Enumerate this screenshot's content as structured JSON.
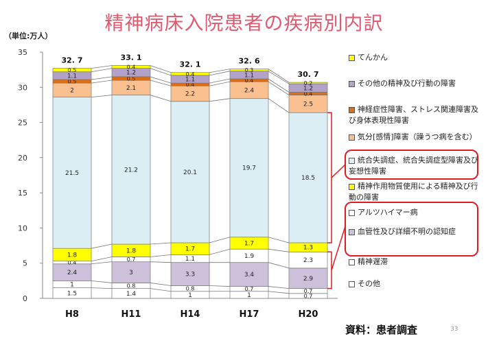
{
  "title": "精神病床入院患者の疾病別内訳",
  "unit_label": "（単位:万人）",
  "source": "資料：患者調査",
  "page_number": "33",
  "chart_data": {
    "type": "bar",
    "stacked": true,
    "categories": [
      "H8",
      "H11",
      "H14",
      "H17",
      "H20"
    ],
    "totals": [
      "32. 7",
      "33. 1",
      "32. 1",
      "32. 6",
      "30. 7"
    ],
    "ylim": [
      0,
      35
    ],
    "yticks": [
      0,
      5,
      10,
      15,
      20,
      25,
      30,
      35
    ],
    "grid": false,
    "legend_position": "right",
    "series": [
      {
        "name": "その他",
        "color": "#ffffff",
        "values": [
          1.5,
          1.4,
          1,
          1,
          0.7
        ],
        "labels": [
          "1.5",
          "1.4",
          "1",
          "1",
          "0.7"
        ]
      },
      {
        "name": "精神遅滞",
        "color": "#ffffff",
        "values": [
          1,
          0.8,
          0.8,
          0.7,
          0.7
        ],
        "labels": [
          "1",
          "0.8",
          "0.8",
          "0.7",
          "0.7"
        ]
      },
      {
        "name": "血管性及び詳細不明の認知症",
        "color": "#ccc0da",
        "values": [
          2.4,
          3,
          3.3,
          3.4,
          2.9
        ],
        "labels": [
          "2.4",
          "3",
          "3.3",
          "3.4",
          "2.9"
        ]
      },
      {
        "name": "アルツハイマー病",
        "color": "#ffffff",
        "values": [
          0.4,
          0.7,
          1.1,
          1.9,
          2.3
        ],
        "labels": [
          "0.4",
          "0.7",
          "1.1",
          "1.9",
          "2.3"
        ]
      },
      {
        "name": "精神作用物質使用による精神及び行動の障害",
        "color": "#ffff00",
        "values": [
          1.8,
          1.8,
          1.7,
          1.7,
          1.3
        ],
        "labels": [
          "1.8",
          "1.8",
          "1.7",
          "1.7",
          "1.3"
        ]
      },
      {
        "name": "統合失調症、統合失調症型障害及び妄想性障害",
        "color": "#dbeef4",
        "values": [
          21.5,
          21.2,
          20.1,
          19.7,
          18.5
        ],
        "labels": [
          "21.5",
          "21.2",
          "20.1",
          "19.7",
          "18.5"
        ]
      },
      {
        "name": "気分[感情]障害（躁うつ病を含む）",
        "color": "#fac090",
        "values": [
          2,
          2.1,
          2.2,
          2.4,
          2.5
        ],
        "labels": [
          "2",
          "2.1",
          "2.2",
          "2.4",
          "2.5"
        ]
      },
      {
        "name": "神経症性障害、ストレス関連障害及び身体表現性障害",
        "color": "#e46c0a",
        "values": [
          0.5,
          0.5,
          0.4,
          0.4,
          0.4
        ],
        "labels": [
          "0.5",
          "0.5",
          "0.4",
          "0.4",
          "0.4"
        ]
      },
      {
        "name": "その他の精神及び行動の障害",
        "color": "#b3a2c7",
        "values": [
          1.1,
          1.2,
          1.1,
          1.1,
          1.2
        ],
        "labels": [
          "1.1",
          "1.2",
          "1.1",
          "1.1",
          "1.2"
        ]
      },
      {
        "name": "てんかん",
        "color": "#ffff00",
        "values": [
          0.5,
          0.4,
          0.4,
          0.3,
          0.2
        ],
        "labels": [
          "0.5",
          "0.4",
          "0.4",
          "0.3",
          "0.2"
        ]
      }
    ]
  },
  "legend": [
    {
      "text": "てんかん",
      "color": "#ffff00"
    },
    {
      "text": "その他の精神及び行動の障害",
      "color": "#b3a2c7"
    },
    {
      "text": "神経症性障害、ストレス関連障害及び身体表現性障害",
      "color": "#e46c0a"
    },
    {
      "text": "気分[感情]障害（躁うつ病を含む）",
      "color": "#fac090"
    },
    {
      "text": "統合失調症、統合失調症型障害及び妄想性障害",
      "color": "#dbeef4"
    },
    {
      "text": "精神作用物質使用による精神及び行動の障害",
      "color": "#ffff00"
    },
    {
      "text": "アルツハイマー病",
      "color": "#ffffff"
    },
    {
      "text": "血管性及び詳細不明の認知症",
      "color": "#ccc0da"
    },
    {
      "text": "精神遅滞",
      "color": "#ffffff"
    },
    {
      "text": "その他",
      "color": "#ffffff"
    }
  ],
  "highlight_color": "#e01a24"
}
